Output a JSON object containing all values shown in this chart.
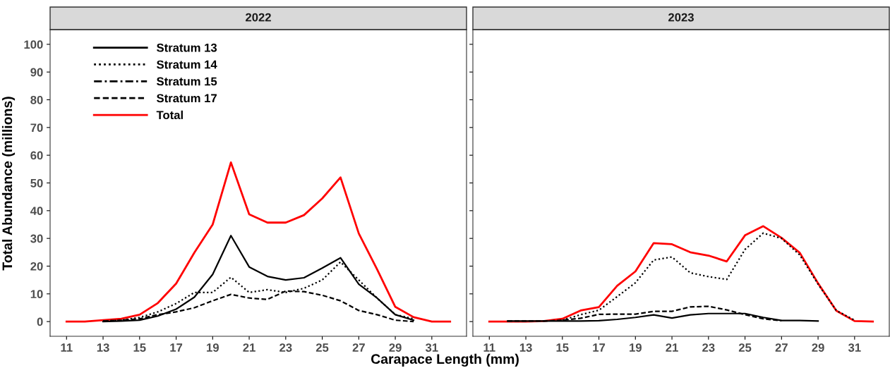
{
  "chart_data": [
    {
      "type": "line",
      "title": "2022",
      "xlabel": "Carapace Length (mm)",
      "ylabel": "Total Abundance (millions)",
      "x": [
        11,
        12,
        13,
        14,
        15,
        16,
        17,
        18,
        19,
        20,
        21,
        22,
        23,
        24,
        25,
        26,
        27,
        28,
        29,
        30,
        31,
        32
      ],
      "xlim": [
        10.1,
        32.9
      ],
      "ylim": [
        -5.3,
        105.3
      ],
      "xticks": [
        11,
        13,
        15,
        17,
        19,
        21,
        23,
        25,
        27,
        29,
        31
      ],
      "yticks": [
        0,
        10,
        20,
        30,
        40,
        50,
        60,
        70,
        80,
        90,
        100
      ],
      "grid": false,
      "legend": "top left",
      "series": [
        {
          "name": "Stratum 13",
          "color": "#000000",
          "line_style": "solid",
          "values": [
            null,
            null,
            0,
            0.2,
            0.5,
            2,
            4.5,
            8.8,
            17,
            31,
            19.7,
            16.3,
            15,
            15.8,
            19.3,
            23,
            13.5,
            8.5,
            2.5,
            0.5,
            null,
            null
          ]
        },
        {
          "name": "Stratum 14",
          "color": "#000000",
          "line_style": "dotted",
          "values": [
            null,
            null,
            0.2,
            0.5,
            1.5,
            3.5,
            6.5,
            10.5,
            10.5,
            16,
            10.5,
            11.5,
            10.5,
            12,
            15,
            21.5,
            15,
            8.5,
            2.5,
            1,
            null,
            null
          ]
        },
        {
          "name": "Stratum 15",
          "color": "#000000",
          "line_style": "dashdot",
          "values": [
            null,
            null,
            null,
            null,
            null,
            null,
            null,
            null,
            null,
            null,
            null,
            null,
            null,
            null,
            null,
            null,
            null,
            null,
            null,
            null,
            null,
            null
          ]
        },
        {
          "name": "Stratum 17",
          "color": "#000000",
          "line_style": "dashed",
          "values": [
            null,
            null,
            0.2,
            0.5,
            1,
            2.5,
            3.5,
            5,
            7.5,
            9.8,
            8.5,
            8,
            11,
            10.8,
            9.5,
            7.5,
            4,
            2.5,
            0.5,
            0,
            null,
            null
          ]
        },
        {
          "name": "Total",
          "color": "#ff0000",
          "line_style": "solid",
          "values": [
            0,
            0,
            0.5,
            1,
            2.5,
            6.7,
            13.7,
            24.9,
            35,
            57.4,
            38.7,
            35.7,
            35.7,
            38.4,
            44.4,
            52,
            31.8,
            18.9,
            5.3,
            1.6,
            0,
            0
          ]
        }
      ]
    },
    {
      "type": "line",
      "title": "2023",
      "x": [
        11,
        12,
        13,
        14,
        15,
        16,
        17,
        18,
        19,
        20,
        21,
        22,
        23,
        24,
        25,
        26,
        27,
        28,
        29,
        30,
        31,
        32
      ],
      "xlim": [
        10.1,
        32.9
      ],
      "ylim": [
        -5.3,
        105.3
      ],
      "xticks": [
        11,
        13,
        15,
        17,
        19,
        21,
        23,
        25,
        27,
        29,
        31
      ],
      "yticks": [
        0,
        10,
        20,
        30,
        40,
        50,
        60,
        70,
        80,
        90,
        100
      ],
      "grid": false,
      "legend": false,
      "tick_labels": "x",
      "series": [
        {
          "color": "#000000",
          "line_style": "solid",
          "values": [
            null,
            0.2,
            0.2,
            0.2,
            0.2,
            0.2,
            0.3,
            0.8,
            1.5,
            2.4,
            1.3,
            2.4,
            2.9,
            2.9,
            2.9,
            1.5,
            0.4,
            0.4,
            0.2,
            null,
            null,
            null
          ]
        },
        {
          "color": "#000000",
          "line_style": "dotted",
          "values": [
            null,
            null,
            null,
            null,
            0.5,
            2.5,
            4.1,
            9,
            14,
            22.2,
            23.3,
            17.6,
            16.2,
            15.2,
            26,
            31.9,
            30,
            24,
            13.5,
            4,
            0.5,
            null
          ]
        },
        {
          "color": "#000000",
          "line_style": "dashed",
          "values": [
            null,
            0.2,
            0.2,
            0.2,
            0.5,
            1.2,
            2.6,
            2.7,
            2.7,
            3.7,
            3.7,
            5.3,
            5.5,
            4.2,
            2.5,
            1,
            0.3,
            null,
            null,
            null,
            null,
            null
          ]
        },
        {
          "color": "#ff0000",
          "line_style": "solid",
          "values": [
            0,
            0,
            0,
            0.2,
            1,
            4,
            5.2,
            12.9,
            18.1,
            28.3,
            27.9,
            25,
            23.8,
            21.7,
            31.1,
            34.4,
            30.2,
            24.8,
            13.8,
            3.9,
            0.2,
            0
          ]
        }
      ]
    }
  ]
}
